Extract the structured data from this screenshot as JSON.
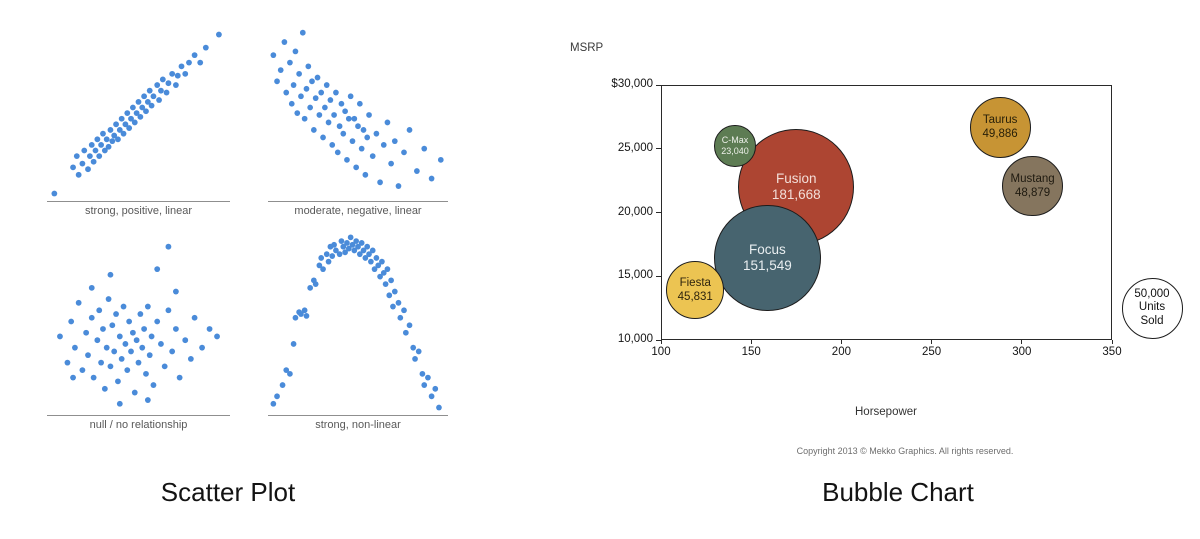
{
  "captions": {
    "left": "Scatter Plot",
    "right": "Bubble Chart"
  },
  "colors": {
    "scatter_dot": "#4a8bd9",
    "scatter_axis": "#8f8f8f",
    "scatter_caption": "#595959",
    "plot_border": "#2a2a2a"
  },
  "chart_data": [
    {
      "type": "scatter",
      "title": "Scatter Plot",
      "axes": "unlabeled demo panels, point coords normalized 0-100 (y up)",
      "panels": [
        {
          "caption": "strong, positive, linear",
          "points": [
            [
              5,
              4
            ],
            [
              93,
              89
            ],
            [
              15,
              18
            ],
            [
              17,
              24
            ],
            [
              18,
              14
            ],
            [
              20,
              20
            ],
            [
              21,
              27
            ],
            [
              23,
              17
            ],
            [
              24,
              24
            ],
            [
              25,
              30
            ],
            [
              26,
              21
            ],
            [
              27,
              27
            ],
            [
              28,
              33
            ],
            [
              29,
              24
            ],
            [
              30,
              30
            ],
            [
              31,
              36
            ],
            [
              32,
              27
            ],
            [
              33,
              33
            ],
            [
              34,
              29
            ],
            [
              35,
              38
            ],
            [
              36,
              32
            ],
            [
              37,
              35
            ],
            [
              38,
              41
            ],
            [
              39,
              33
            ],
            [
              40,
              38
            ],
            [
              41,
              44
            ],
            [
              42,
              36
            ],
            [
              43,
              41
            ],
            [
              44,
              47
            ],
            [
              45,
              39
            ],
            [
              46,
              44
            ],
            [
              47,
              50
            ],
            [
              48,
              42
            ],
            [
              49,
              47
            ],
            [
              50,
              53
            ],
            [
              51,
              45
            ],
            [
              52,
              50
            ],
            [
              53,
              56
            ],
            [
              54,
              48
            ],
            [
              55,
              53
            ],
            [
              56,
              59
            ],
            [
              57,
              51
            ],
            [
              58,
              56
            ],
            [
              60,
              62
            ],
            [
              61,
              54
            ],
            [
              62,
              59
            ],
            [
              63,
              65
            ],
            [
              65,
              58
            ],
            [
              66,
              63
            ],
            [
              68,
              68
            ],
            [
              70,
              62
            ],
            [
              71,
              67
            ],
            [
              73,
              72
            ],
            [
              75,
              68
            ],
            [
              77,
              74
            ],
            [
              80,
              78
            ],
            [
              83,
              74
            ],
            [
              86,
              82
            ]
          ]
        },
        {
          "caption": "moderate, negative, linear",
          "points": [
            [
              4,
              78
            ],
            [
              6,
              64
            ],
            [
              8,
              70
            ],
            [
              10,
              85
            ],
            [
              11,
              58
            ],
            [
              13,
              74
            ],
            [
              14,
              52
            ],
            [
              15,
              62
            ],
            [
              16,
              80
            ],
            [
              17,
              47
            ],
            [
              18,
              68
            ],
            [
              19,
              56
            ],
            [
              20,
              90
            ],
            [
              21,
              44
            ],
            [
              22,
              60
            ],
            [
              23,
              72
            ],
            [
              24,
              50
            ],
            [
              25,
              64
            ],
            [
              26,
              38
            ],
            [
              27,
              55
            ],
            [
              28,
              66
            ],
            [
              29,
              46
            ],
            [
              30,
              58
            ],
            [
              31,
              34
            ],
            [
              32,
              50
            ],
            [
              33,
              62
            ],
            [
              34,
              42
            ],
            [
              35,
              54
            ],
            [
              36,
              30
            ],
            [
              37,
              46
            ],
            [
              38,
              58
            ],
            [
              39,
              26
            ],
            [
              40,
              40
            ],
            [
              41,
              52
            ],
            [
              42,
              36
            ],
            [
              43,
              48
            ],
            [
              44,
              22
            ],
            [
              45,
              44
            ],
            [
              46,
              56
            ],
            [
              47,
              32
            ],
            [
              48,
              44
            ],
            [
              49,
              18
            ],
            [
              50,
              40
            ],
            [
              51,
              52
            ],
            [
              52,
              28
            ],
            [
              53,
              38
            ],
            [
              54,
              14
            ],
            [
              55,
              34
            ],
            [
              56,
              46
            ],
            [
              58,
              24
            ],
            [
              60,
              36
            ],
            [
              62,
              10
            ],
            [
              64,
              30
            ],
            [
              66,
              42
            ],
            [
              68,
              20
            ],
            [
              70,
              32
            ],
            [
              72,
              8
            ],
            [
              75,
              26
            ],
            [
              78,
              38
            ],
            [
              82,
              16
            ],
            [
              86,
              28
            ],
            [
              90,
              12
            ],
            [
              95,
              22
            ]
          ]
        },
        {
          "caption": "null / no relationship",
          "points": [
            [
              8,
              42
            ],
            [
              12,
              28
            ],
            [
              14,
              50
            ],
            [
              16,
              36
            ],
            [
              18,
              60
            ],
            [
              20,
              24
            ],
            [
              22,
              44
            ],
            [
              23,
              32
            ],
            [
              25,
              52
            ],
            [
              26,
              20
            ],
            [
              28,
              40
            ],
            [
              29,
              56
            ],
            [
              30,
              28
            ],
            [
              31,
              46
            ],
            [
              32,
              14
            ],
            [
              33,
              36
            ],
            [
              34,
              62
            ],
            [
              35,
              26
            ],
            [
              36,
              48
            ],
            [
              37,
              34
            ],
            [
              38,
              54
            ],
            [
              39,
              18
            ],
            [
              40,
              42
            ],
            [
              41,
              30
            ],
            [
              42,
              58
            ],
            [
              43,
              38
            ],
            [
              44,
              24
            ],
            [
              45,
              50
            ],
            [
              46,
              34
            ],
            [
              47,
              44
            ],
            [
              48,
              12
            ],
            [
              49,
              40
            ],
            [
              50,
              28
            ],
            [
              51,
              54
            ],
            [
              52,
              36
            ],
            [
              53,
              46
            ],
            [
              54,
              22
            ],
            [
              55,
              58
            ],
            [
              56,
              32
            ],
            [
              57,
              42
            ],
            [
              58,
              16
            ],
            [
              60,
              50
            ],
            [
              62,
              38
            ],
            [
              64,
              26
            ],
            [
              66,
              56
            ],
            [
              68,
              34
            ],
            [
              70,
              46
            ],
            [
              72,
              20
            ],
            [
              75,
              40
            ],
            [
              78,
              30
            ],
            [
              80,
              52
            ],
            [
              84,
              36
            ],
            [
              88,
              46
            ],
            [
              66,
              90
            ],
            [
              60,
              78
            ],
            [
              35,
              75
            ],
            [
              25,
              68
            ],
            [
              70,
              66
            ],
            [
              15,
              20
            ],
            [
              55,
              8
            ],
            [
              40,
              6
            ],
            [
              92,
              42
            ]
          ]
        },
        {
          "caption": "strong, non-linear",
          "points": [
            [
              4,
              6
            ],
            [
              6,
              10
            ],
            [
              9,
              16
            ],
            [
              11,
              24
            ],
            [
              13,
              22
            ],
            [
              15,
              38
            ],
            [
              16,
              52
            ],
            [
              18,
              55
            ],
            [
              19,
              54
            ],
            [
              21,
              56
            ],
            [
              22,
              53
            ],
            [
              24,
              68
            ],
            [
              26,
              72
            ],
            [
              27,
              70
            ],
            [
              29,
              80
            ],
            [
              30,
              84
            ],
            [
              31,
              78
            ],
            [
              33,
              86
            ],
            [
              34,
              82
            ],
            [
              35,
              90
            ],
            [
              36,
              85
            ],
            [
              37,
              91
            ],
            [
              38,
              88
            ],
            [
              40,
              86
            ],
            [
              41,
              93
            ],
            [
              42,
              90
            ],
            [
              43,
              87
            ],
            [
              44,
              92
            ],
            [
              45,
              89
            ],
            [
              46,
              95
            ],
            [
              47,
              91
            ],
            [
              48,
              88
            ],
            [
              49,
              93
            ],
            [
              50,
              90
            ],
            [
              51,
              86
            ],
            [
              52,
              92
            ],
            [
              53,
              88
            ],
            [
              54,
              84
            ],
            [
              55,
              90
            ],
            [
              56,
              86
            ],
            [
              57,
              82
            ],
            [
              58,
              88
            ],
            [
              59,
              78
            ],
            [
              60,
              84
            ],
            [
              61,
              80
            ],
            [
              62,
              74
            ],
            [
              63,
              82
            ],
            [
              64,
              76
            ],
            [
              65,
              70
            ],
            [
              66,
              78
            ],
            [
              67,
              64
            ],
            [
              68,
              72
            ],
            [
              69,
              58
            ],
            [
              70,
              66
            ],
            [
              72,
              60
            ],
            [
              73,
              52
            ],
            [
              75,
              56
            ],
            [
              76,
              44
            ],
            [
              78,
              48
            ],
            [
              80,
              36
            ],
            [
              81,
              30
            ],
            [
              83,
              34
            ],
            [
              85,
              22
            ],
            [
              86,
              16
            ],
            [
              88,
              20
            ],
            [
              90,
              10
            ],
            [
              92,
              14
            ],
            [
              94,
              4
            ]
          ]
        }
      ]
    },
    {
      "type": "bubble",
      "title": "Bubble Chart",
      "ylabel": "MSRP",
      "xlabel": "Horsepower",
      "copyright": "Copyright 2013 © Mekko Graphics. All rights reserved.",
      "xlim": [
        100,
        350
      ],
      "ylim": [
        10000,
        30000
      ],
      "x_ticks": [
        "100",
        "150",
        "200",
        "250",
        "300",
        "350"
      ],
      "y_ticks": [
        "$30,000",
        "25,000",
        "20,000",
        "15,000",
        "10,000"
      ],
      "series": [
        {
          "name": "Fusion",
          "hp": 175,
          "msrp": 22000,
          "units_sold": 181668,
          "units_label": "181,668",
          "fill": "#ad4532",
          "text_color": "#f3ded8"
        },
        {
          "name": "Focus",
          "hp": 159,
          "msrp": 16400,
          "units_sold": 151549,
          "units_label": "151,549",
          "fill": "#47646f",
          "text_color": "#e9eef0"
        },
        {
          "name": "Fiesta",
          "hp": 119,
          "msrp": 13900,
          "units_sold": 45831,
          "units_label": "45,831",
          "fill": "#ecc452",
          "text_color": "#2f250d"
        },
        {
          "name": "C-Max",
          "hp": 141,
          "msrp": 25200,
          "units_sold": 23040,
          "units_label": "23,040",
          "fill": "#5d7c53",
          "text_color": "#eef0ea"
        },
        {
          "name": "Mustang",
          "hp": 306,
          "msrp": 22100,
          "units_sold": 48879,
          "units_label": "48,879",
          "fill": "#85755e",
          "text_color": "#1f1a10"
        },
        {
          "name": "Taurus",
          "hp": 288,
          "msrp": 26700,
          "units_sold": 49886,
          "units_label": "49,886",
          "fill": "#c79434",
          "text_color": "#271f08"
        }
      ],
      "size_legend": {
        "value": 50000,
        "lines": [
          "50,000",
          "Units",
          "Sold"
        ]
      }
    }
  ]
}
